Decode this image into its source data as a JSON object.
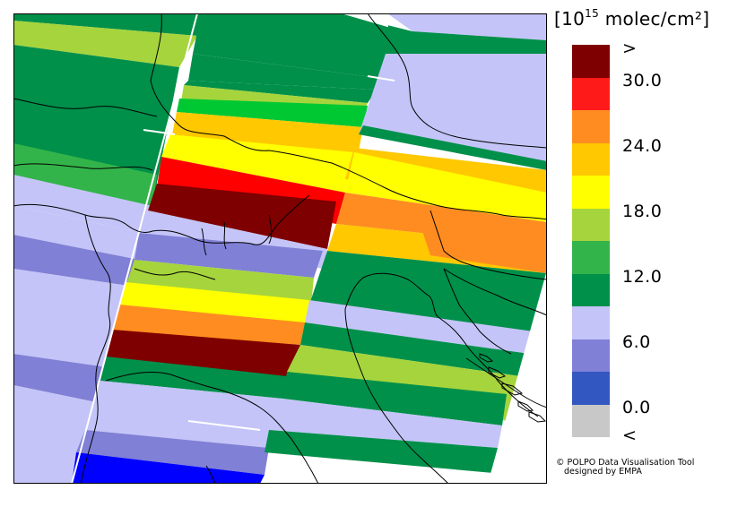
{
  "legend": {
    "unit_prefix": "[10",
    "unit_exponent": "15",
    "unit_suffix": " molec/cm²]",
    "colors": [
      "#7f0000",
      "#ff1a1a",
      "#ff8c20",
      "#ffc800",
      "#ffff00",
      "#a6d43c",
      "#33b44a",
      "#00904a",
      "#c4c4f8",
      "#8080d6",
      "#3357c0",
      "#c8c8c8"
    ],
    "tick_labels": [
      ">",
      "30.0",
      "24.0",
      "18.0",
      "12.0",
      "6.0",
      "0.0",
      "<"
    ]
  },
  "credit": {
    "line1": "© POLPO Data Visualisation Tool",
    "line2": "designed by EMPA"
  },
  "map": {
    "description_type": "satellite NO2 column swaths over Alps and northern Italy",
    "background_color": "#ffffff",
    "border_color": "#000000"
  }
}
